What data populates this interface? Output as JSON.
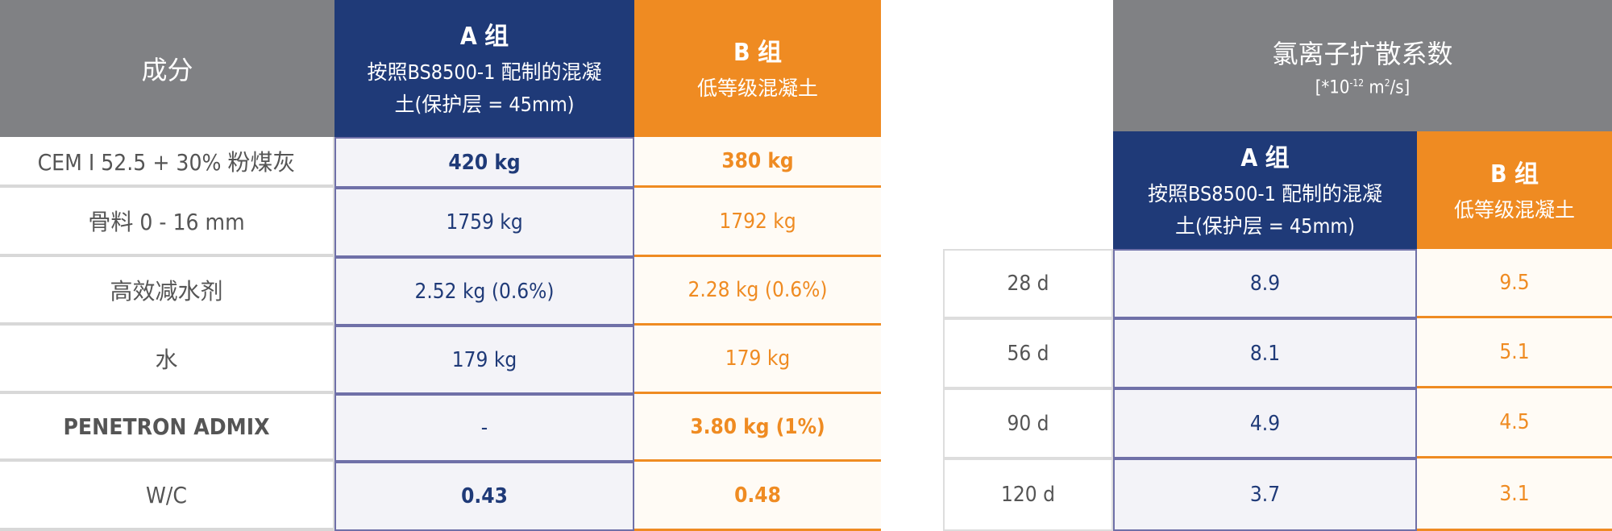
{
  "colors": {
    "gray": "#808184",
    "blue": "#1f3a78",
    "orange": "#ef8b22"
  },
  "mix_table": {
    "header": {
      "component": "成分",
      "group_a": {
        "title": "A 组",
        "subtitle": "按照BS8500-1 配制的混凝土(保护层 = 45mm)"
      },
      "group_b": {
        "title": "B 组",
        "subtitle": "低等级混凝土"
      }
    },
    "rows": [
      {
        "label": "CEM I 52.5 + 30% 粉煤灰",
        "a": "420 kg",
        "b": "380 kg",
        "bold_values": true,
        "bold_label": false
      },
      {
        "label": "骨料 0 - 16 mm",
        "a": "1759 kg",
        "b": "1792 kg",
        "bold_values": false,
        "bold_label": false
      },
      {
        "label": "高效减水剂",
        "a": "2.52 kg (0.6%)",
        "b": "2.28 kg (0.6%)",
        "bold_values": false,
        "bold_label": false
      },
      {
        "label": "水",
        "a": "179 kg",
        "b": "179 kg",
        "bold_values": false,
        "bold_label": false
      },
      {
        "label": "PENETRON ADMIX",
        "a": "-",
        "b": "3.80 kg (1%)",
        "bold_values": false,
        "bold_label": true
      },
      {
        "label": "W/C",
        "a": "0.43",
        "b": "0.48",
        "bold_values": true,
        "bold_label": false
      }
    ]
  },
  "chloride_table": {
    "title": "氯离子扩散系数",
    "unit_prefix": "[*10",
    "unit_exp": "-12",
    "unit_mid": " m",
    "unit_exp2": "2",
    "unit_suffix": "/s]",
    "group_a": {
      "title": "A 组",
      "subtitle": "按照BS8500-1 配制的混凝土(保护层 = 45mm)"
    },
    "group_b": {
      "title": "B 组",
      "subtitle": "低等级混凝土"
    },
    "rows": [
      {
        "age": "28 d",
        "a": "8.9",
        "b": "9.5"
      },
      {
        "age": "56 d",
        "a": "8.1",
        "b": "5.1"
      },
      {
        "age": "90 d",
        "a": "4.9",
        "b": "4.5"
      },
      {
        "age": "120 d",
        "a": "3.7",
        "b": "3.1"
      }
    ]
  }
}
